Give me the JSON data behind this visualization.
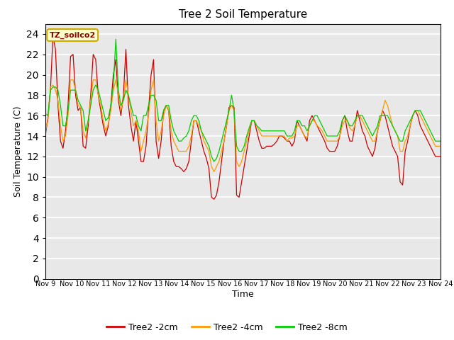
{
  "title": "Tree 2 Soil Temperature",
  "xlabel": "Time",
  "ylabel": "Soil Temperature (C)",
  "annotation": "TZ_soilco2",
  "ylim": [
    0,
    25
  ],
  "yticks": [
    0,
    2,
    4,
    6,
    8,
    10,
    12,
    14,
    16,
    18,
    20,
    22,
    24
  ],
  "xtick_labels": [
    "Nov 9",
    "Nov 10",
    "Nov 11",
    "Nov 12",
    "Nov 13",
    "Nov 14",
    "Nov 15",
    "Nov 16",
    "Nov 17",
    "Nov 18",
    "Nov 19",
    "Nov 20",
    "Nov 21",
    "Nov 22",
    "Nov 23",
    "Nov 24"
  ],
  "bg_color": "#e8e8e8",
  "line_color_2cm": "#cc0000",
  "line_color_4cm": "#ff9900",
  "line_color_8cm": "#00cc00",
  "legend_labels": [
    "Tree2 -2cm",
    "Tree2 -4cm",
    "Tree2 -8cm"
  ],
  "tree2_2cm": [
    14.1,
    15.8,
    18.5,
    23.8,
    22.5,
    17.0,
    13.5,
    12.8,
    14.5,
    17.0,
    21.8,
    22.0,
    18.0,
    16.5,
    16.8,
    13.0,
    12.8,
    15.0,
    18.0,
    22.0,
    21.5,
    18.0,
    16.5,
    15.0,
    14.0,
    15.0,
    17.0,
    20.0,
    21.5,
    17.5,
    16.0,
    18.0,
    22.5,
    17.0,
    15.0,
    13.5,
    15.5,
    13.5,
    11.5,
    11.5,
    13.0,
    16.5,
    20.0,
    21.5,
    13.5,
    11.8,
    13.5,
    16.5,
    17.0,
    16.5,
    13.0,
    11.5,
    11.0,
    11.0,
    10.8,
    10.5,
    10.8,
    11.5,
    13.5,
    15.5,
    15.5,
    14.5,
    13.5,
    12.5,
    11.8,
    10.8,
    8.0,
    7.8,
    8.2,
    9.5,
    11.5,
    13.5,
    15.0,
    16.8,
    17.0,
    16.8,
    8.2,
    8.0,
    9.5,
    11.0,
    12.5,
    14.0,
    15.5,
    15.5,
    14.5,
    13.5,
    12.8,
    12.8,
    13.0,
    13.0,
    13.0,
    13.2,
    13.5,
    14.0,
    14.0,
    13.8,
    13.5,
    13.5,
    13.0,
    13.5,
    15.5,
    15.0,
    14.5,
    14.0,
    13.5,
    15.5,
    16.0,
    15.5,
    15.0,
    14.5,
    14.0,
    13.5,
    12.8,
    12.5,
    12.5,
    12.5,
    13.0,
    14.0,
    15.5,
    16.0,
    14.5,
    13.5,
    13.5,
    15.0,
    16.5,
    15.5,
    14.5,
    14.0,
    13.0,
    12.5,
    12.0,
    12.8,
    14.5,
    15.5,
    16.5,
    16.0,
    15.0,
    14.0,
    13.0,
    12.5,
    12.0,
    9.5,
    9.2,
    12.5,
    13.5,
    15.0,
    16.0,
    16.5,
    16.0,
    15.0,
    14.5,
    14.0,
    13.5,
    13.0,
    12.5,
    12.0,
    12.0,
    12.0
  ],
  "tree2_4cm": [
    14.5,
    15.5,
    18.8,
    19.0,
    18.5,
    17.5,
    15.0,
    13.5,
    14.0,
    16.0,
    19.5,
    19.5,
    18.5,
    17.0,
    16.8,
    14.5,
    13.8,
    15.5,
    17.5,
    19.5,
    19.5,
    18.0,
    17.0,
    15.5,
    14.5,
    15.2,
    16.5,
    18.5,
    19.5,
    18.0,
    16.5,
    17.5,
    19.5,
    18.0,
    16.5,
    15.0,
    15.5,
    14.5,
    12.5,
    13.5,
    14.5,
    16.0,
    18.5,
    19.5,
    15.5,
    13.5,
    14.5,
    16.0,
    17.0,
    16.5,
    14.5,
    13.5,
    13.0,
    12.5,
    12.5,
    12.5,
    12.5,
    13.0,
    14.0,
    15.5,
    15.5,
    15.0,
    14.5,
    13.5,
    13.0,
    12.5,
    11.0,
    10.5,
    11.0,
    11.5,
    12.5,
    13.5,
    15.0,
    16.5,
    17.0,
    16.5,
    11.5,
    11.0,
    11.5,
    12.5,
    13.5,
    14.5,
    15.5,
    15.5,
    15.0,
    14.5,
    14.0,
    14.0,
    14.0,
    14.0,
    14.0,
    14.0,
    14.0,
    14.0,
    14.0,
    14.0,
    13.5,
    13.8,
    13.8,
    14.0,
    15.0,
    15.0,
    14.5,
    14.0,
    13.8,
    15.0,
    15.5,
    15.5,
    15.0,
    14.8,
    14.5,
    14.0,
    13.5,
    13.5,
    13.5,
    13.5,
    13.5,
    14.0,
    15.0,
    15.5,
    15.5,
    14.8,
    14.5,
    15.0,
    16.0,
    16.0,
    15.5,
    15.0,
    14.5,
    14.0,
    13.5,
    13.5,
    14.5,
    15.5,
    16.5,
    17.5,
    17.0,
    16.0,
    15.0,
    14.5,
    14.0,
    12.5,
    12.5,
    13.5,
    14.0,
    15.0,
    16.0,
    16.5,
    16.5,
    16.0,
    15.5,
    15.0,
    14.5,
    14.0,
    13.5,
    13.0,
    13.0,
    13.0
  ],
  "tree2_8cm": [
    16.2,
    16.0,
    18.5,
    18.8,
    18.8,
    18.5,
    17.0,
    15.0,
    15.0,
    16.5,
    18.5,
    18.5,
    18.5,
    17.5,
    17.0,
    16.5,
    14.5,
    15.5,
    17.0,
    18.5,
    19.0,
    18.5,
    17.5,
    16.5,
    15.5,
    15.8,
    17.0,
    19.0,
    23.5,
    18.5,
    17.0,
    17.5,
    18.5,
    18.0,
    17.0,
    16.0,
    16.0,
    15.0,
    14.5,
    16.0,
    16.0,
    17.0,
    18.0,
    18.0,
    17.5,
    15.5,
    15.5,
    16.5,
    17.0,
    17.0,
    15.5,
    14.5,
    14.0,
    13.5,
    13.5,
    13.8,
    14.0,
    14.5,
    15.5,
    16.0,
    16.0,
    15.5,
    14.5,
    14.0,
    13.5,
    13.0,
    12.0,
    11.5,
    11.8,
    12.5,
    13.5,
    14.5,
    15.5,
    16.5,
    18.0,
    16.5,
    13.0,
    12.5,
    12.5,
    13.0,
    14.0,
    14.8,
    15.5,
    15.5,
    15.0,
    14.8,
    14.5,
    14.5,
    14.5,
    14.5,
    14.5,
    14.5,
    14.5,
    14.5,
    14.5,
    14.5,
    14.0,
    14.0,
    14.0,
    14.5,
    15.5,
    15.5,
    15.0,
    15.0,
    14.5,
    15.0,
    15.5,
    16.0,
    16.0,
    15.5,
    15.0,
    14.5,
    14.0,
    14.0,
    14.0,
    14.0,
    14.0,
    14.5,
    15.5,
    16.0,
    15.5,
    15.0,
    15.0,
    15.5,
    16.0,
    16.0,
    16.0,
    15.5,
    15.0,
    14.5,
    14.0,
    14.5,
    15.0,
    16.0,
    16.0,
    16.0,
    16.0,
    15.5,
    15.0,
    14.5,
    14.0,
    13.5,
    13.5,
    14.5,
    15.0,
    15.5,
    16.0,
    16.5,
    16.5,
    16.5,
    16.0,
    15.5,
    15.0,
    14.5,
    14.0,
    13.5,
    13.5,
    13.5
  ]
}
